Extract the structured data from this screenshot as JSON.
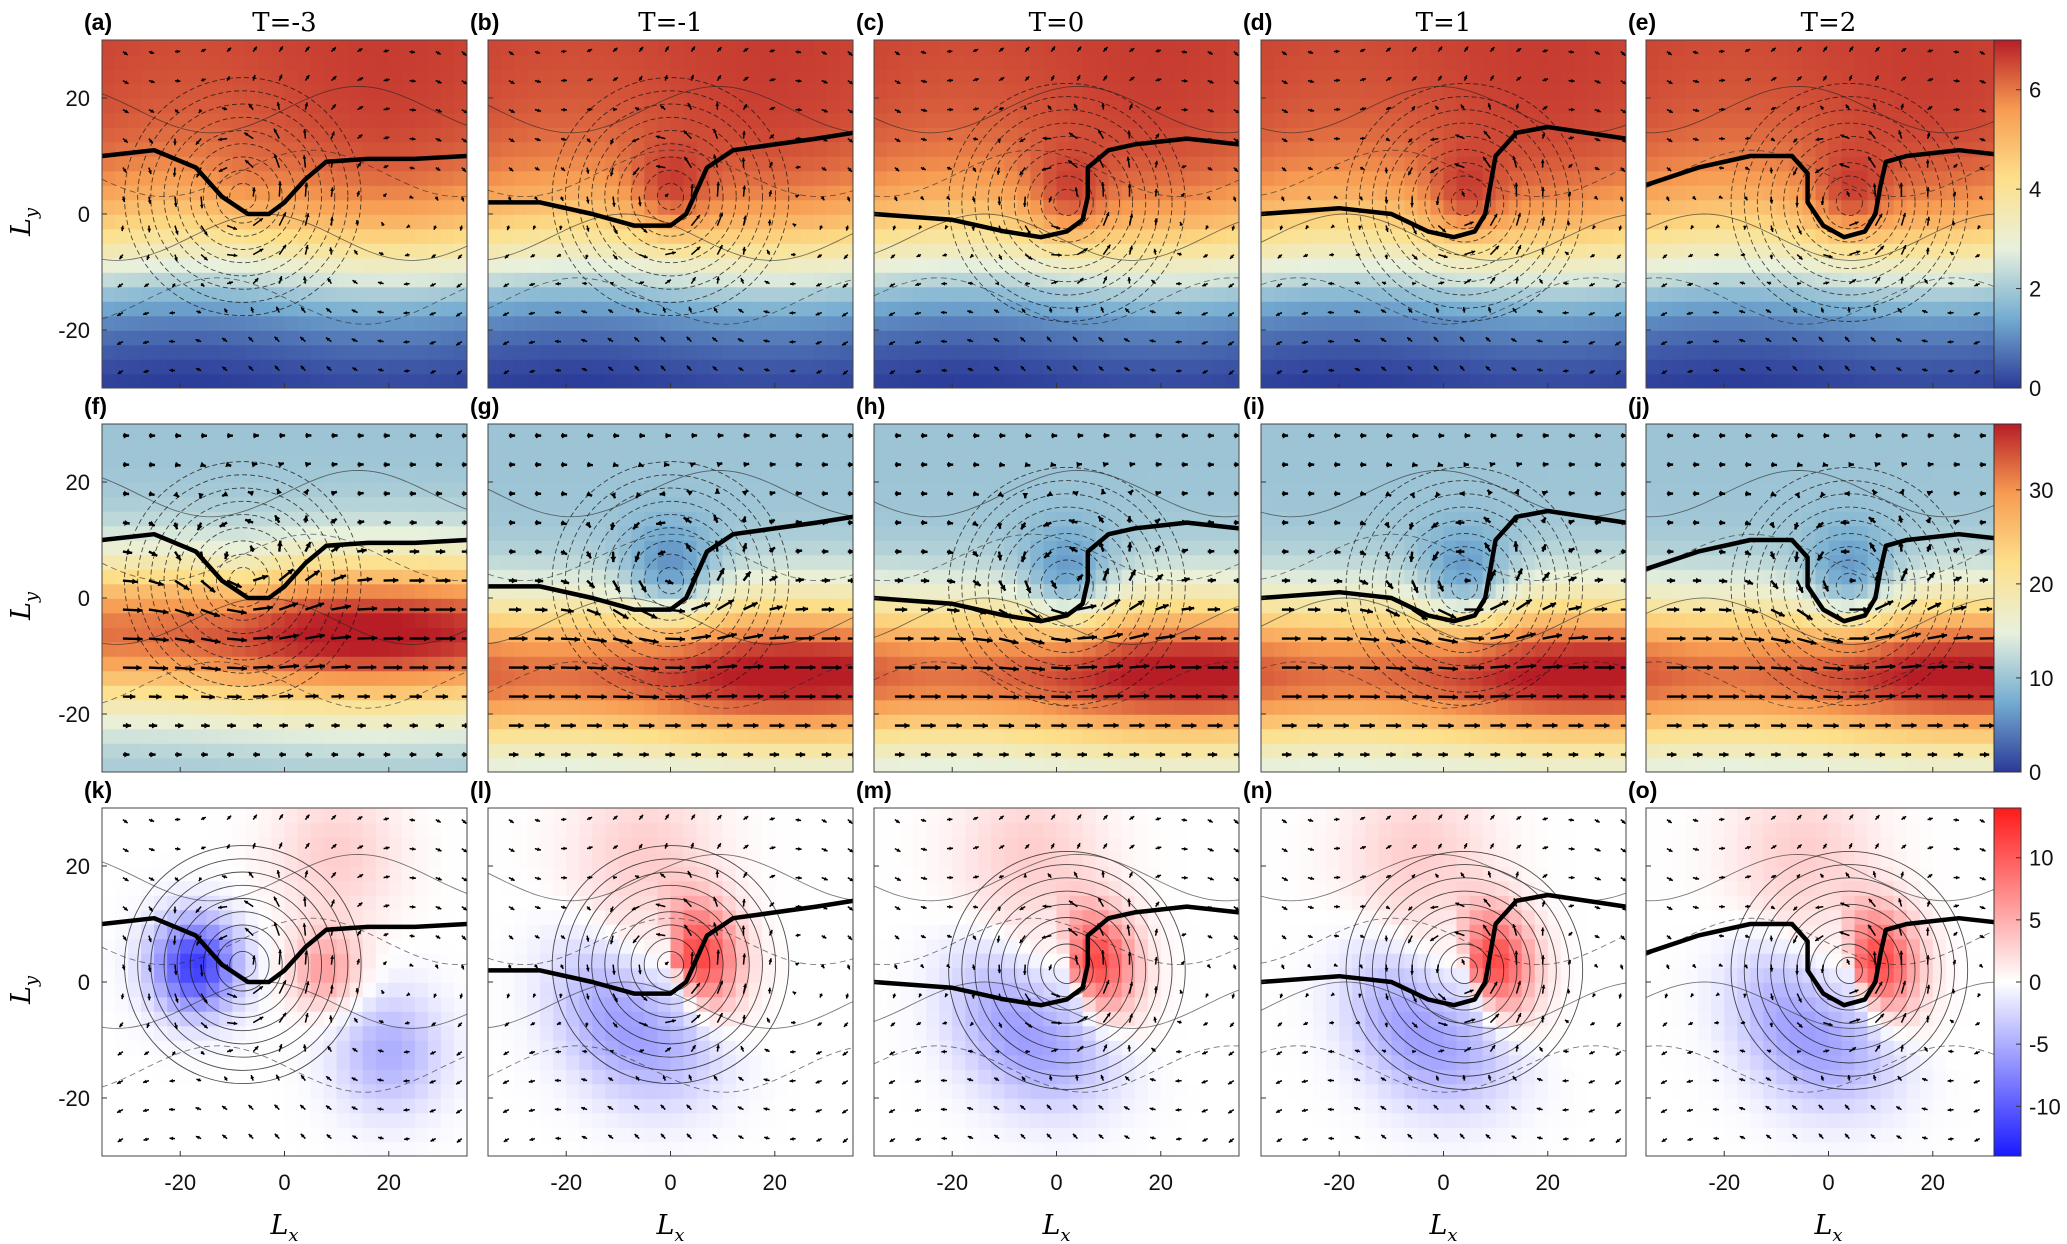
{
  "chart_data": {
    "type": "heatmap",
    "panel_labels": [
      [
        "(a)",
        "(b)",
        "(c)",
        "(d)",
        "(e)"
      ],
      [
        "(f)",
        "(g)",
        "(h)",
        "(i)",
        "(j)"
      ],
      [
        "(k)",
        "(l)",
        "(m)",
        "(n)",
        "(o)"
      ]
    ],
    "column_titles": [
      "T=-3",
      "T=-1",
      "T=0",
      "T=1",
      "T=2"
    ],
    "time_values": [
      -3,
      -1,
      0,
      1,
      2
    ],
    "xlabel_main": "L",
    "xlabel_sub": "x",
    "ylabel_main": "L",
    "ylabel_sub": "y",
    "xlim": [
      -35,
      35
    ],
    "ylim": [
      -30,
      30
    ],
    "x_ticks": [
      -20,
      0,
      20
    ],
    "y_ticks": [
      -20,
      0,
      20
    ],
    "rows": [
      {
        "colormap": "blue-white-red (parula-like jet)",
        "colors": [
          "#2b3a98",
          "#74acd1",
          "#e8f1dd",
          "#fde08a",
          "#f79c52",
          "#b81d26"
        ],
        "clim": [
          0,
          7
        ],
        "colorbar_ticks": [
          0,
          2,
          4,
          6
        ]
      },
      {
        "colormap": "blue-white-red (parula-like jet)",
        "colors": [
          "#2b3a98",
          "#74acd1",
          "#e8f1dd",
          "#fde08a",
          "#f79c52",
          "#b81d26"
        ],
        "clim": [
          0,
          37
        ],
        "colorbar_ticks": [
          0,
          10,
          20,
          30
        ]
      },
      {
        "colormap": "blue-white-red diverging",
        "colors": [
          "#1a1aff",
          "#ffffff",
          "#ff1a1a"
        ],
        "clim": [
          -14,
          14
        ],
        "colorbar_ticks": [
          -10,
          -5,
          0,
          5,
          10
        ]
      }
    ],
    "overlays": [
      "contour lines (solid positive, dashed negative)",
      "vector arrows",
      "thick black front line"
    ],
    "front_curves": [
      [
        [
          -35,
          10
        ],
        [
          -25,
          11
        ],
        [
          -17,
          8
        ],
        [
          -12,
          3
        ],
        [
          -7,
          0
        ],
        [
          -3,
          0
        ],
        [
          0,
          2
        ],
        [
          4,
          6
        ],
        [
          8,
          9
        ],
        [
          16,
          9.5
        ],
        [
          25,
          9.5
        ],
        [
          35,
          10
        ]
      ],
      [
        [
          -35,
          2
        ],
        [
          -25,
          2
        ],
        [
          -15,
          0
        ],
        [
          -7,
          -2
        ],
        [
          0,
          -2
        ],
        [
          3,
          0
        ],
        [
          5,
          4
        ],
        [
          7,
          8
        ],
        [
          12,
          11
        ],
        [
          20,
          12
        ],
        [
          28,
          13
        ],
        [
          35,
          14
        ]
      ],
      [
        [
          -35,
          0
        ],
        [
          -20,
          -1
        ],
        [
          -10,
          -3
        ],
        [
          -3,
          -4
        ],
        [
          2,
          -3
        ],
        [
          5,
          -1
        ],
        [
          6,
          3
        ],
        [
          6,
          8
        ],
        [
          10,
          11
        ],
        [
          15,
          12
        ],
        [
          25,
          13
        ],
        [
          35,
          12
        ]
      ],
      [
        [
          -35,
          0
        ],
        [
          -20,
          1
        ],
        [
          -10,
          0
        ],
        [
          -3,
          -3
        ],
        [
          2,
          -4
        ],
        [
          6,
          -3
        ],
        [
          8,
          0
        ],
        [
          9,
          5
        ],
        [
          10,
          10
        ],
        [
          14,
          14
        ],
        [
          20,
          15
        ],
        [
          35,
          13
        ]
      ],
      [
        [
          -35,
          5
        ],
        [
          -25,
          8
        ],
        [
          -15,
          10
        ],
        [
          -7,
          10
        ],
        [
          -4,
          7
        ],
        [
          -4,
          2
        ],
        [
          -1,
          -2
        ],
        [
          3,
          -4
        ],
        [
          7,
          -3
        ],
        [
          9,
          0
        ],
        [
          10,
          5
        ],
        [
          11,
          9
        ],
        [
          15,
          10
        ],
        [
          25,
          11
        ],
        [
          35,
          10
        ]
      ]
    ]
  }
}
